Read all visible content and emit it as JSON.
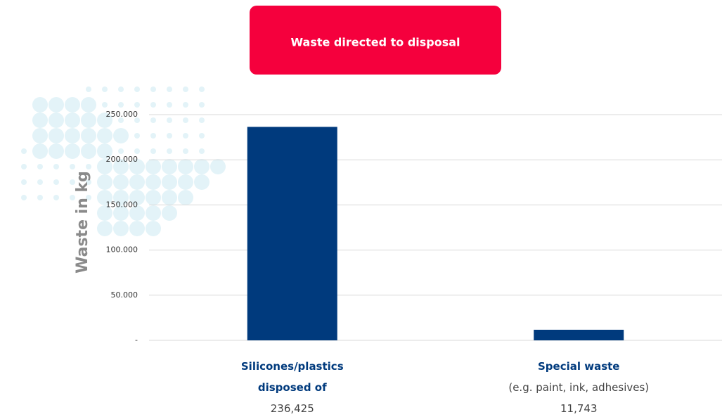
{
  "chart_data": {
    "type": "bar",
    "title": "Waste directed to disposal",
    "y_label": "Waste in kg",
    "categories": [
      "Silicones/plastics disposed of",
      "Special waste"
    ],
    "category_details": [
      null,
      "(e.g. paint, ink, adhesives)"
    ],
    "values": [
      236425,
      11743
    ],
    "value_labels": [
      "236,425",
      "11,743"
    ],
    "color": "#003a7d",
    "title_color": "#f5003d",
    "ylim": [
      0,
      250000
    ],
    "yticks": [
      {
        "value": 0,
        "label": "-"
      },
      {
        "value": 50000,
        "label": "50.000"
      },
      {
        "value": 100000,
        "label": "100.000"
      },
      {
        "value": 150000,
        "label": "150.000"
      },
      {
        "value": 200000,
        "label": "200.000"
      },
      {
        "value": 250000,
        "label": "250.000"
      }
    ],
    "grid": true
  }
}
